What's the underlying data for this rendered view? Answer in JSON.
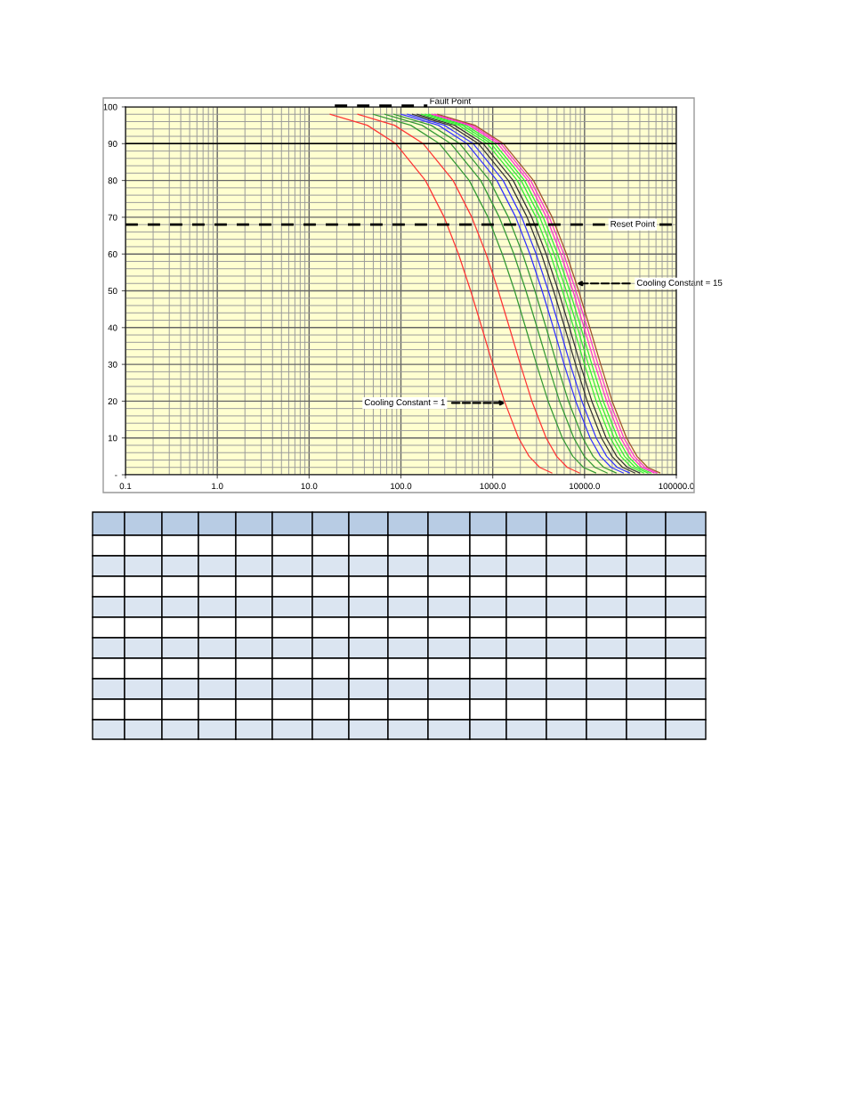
{
  "chart_data": {
    "type": "line",
    "log": "x",
    "grid": true,
    "line_style": "solid",
    "xlim": [
      0.1,
      100000
    ],
    "ylim": [
      0,
      100
    ],
    "xticks": [
      {
        "value": 0.1,
        "label": "0.1"
      },
      {
        "value": 1,
        "label": "1.0"
      },
      {
        "value": 10,
        "label": "10.0"
      },
      {
        "value": 100,
        "label": "100.0"
      },
      {
        "value": 1000,
        "label": "1000.0"
      },
      {
        "value": 10000,
        "label": "10000.0"
      },
      {
        "value": 100000,
        "label": "100000.0"
      }
    ],
    "yticks": [
      {
        "value": 0,
        "label": "-"
      },
      10,
      20,
      30,
      40,
      50,
      60,
      70,
      80,
      90,
      100
    ],
    "ref_lines": [
      {
        "axis": "y",
        "value": 68,
        "label": "Reset Point",
        "color": "#000000",
        "line_style": "dashed"
      },
      {
        "axis": "y",
        "value": 90,
        "label": null,
        "color": "#000000",
        "line_style": "solid"
      }
    ],
    "annotations": [
      "Fault Point",
      {
        "text": "Cooling Constant = 15",
        "x": 8200,
        "y": 52
      },
      {
        "text": "Cooling Constant = 1",
        "x": 1370,
        "y": 19.5
      }
    ],
    "series": [
      {
        "color": "#ff3333",
        "x": [
          17,
          43,
          88,
          185,
          296,
          424,
          575,
          761,
          999,
          1340,
          1910,
          2490,
          3250,
          4400
        ],
        "values": [
          98,
          95,
          90,
          80,
          70,
          60,
          50,
          40,
          30,
          20,
          10,
          5,
          2,
          0.5
        ]
      },
      {
        "color": "#ff3333",
        "x": [
          34,
          85,
          175,
          370,
          592,
          848,
          1150,
          1520,
          2000,
          2670,
          3820,
          4970,
          6490,
          8790
        ],
        "values": [
          98,
          95,
          90,
          80,
          70,
          60,
          50,
          40,
          30,
          20,
          10,
          5,
          2,
          0.5
        ]
      },
      {
        "color": "#339933",
        "x": [
          50,
          128,
          263,
          555,
          888,
          1270,
          1730,
          2280,
          3000,
          4010,
          5730,
          7460,
          9740,
          13200
        ],
        "values": [
          98,
          95,
          90,
          80,
          70,
          60,
          50,
          40,
          30,
          20,
          10,
          5,
          2,
          0.5
        ]
      },
      {
        "color": "#339933",
        "x": [
          67,
          170,
          350,
          740,
          1180,
          1700,
          2300,
          3040,
          4000,
          5340,
          7640,
          9940,
          13000,
          17600
        ],
        "values": [
          98,
          95,
          90,
          80,
          70,
          60,
          50,
          40,
          30,
          20,
          10,
          5,
          2,
          0.5
        ]
      },
      {
        "color": "#339933",
        "x": [
          84,
          213,
          438,
          925,
          1480,
          2120,
          2880,
          3810,
          5000,
          6680,
          9560,
          12400,
          16200,
          22000
        ],
        "values": [
          98,
          95,
          90,
          80,
          70,
          60,
          50,
          40,
          30,
          20,
          10,
          5,
          2,
          0.5
        ]
      },
      {
        "color": "#3333ff",
        "x": [
          101,
          256,
          525,
          1110,
          1780,
          2540,
          3450,
          4570,
          5990,
          8020,
          11500,
          14900,
          19500,
          26400
        ],
        "values": [
          98,
          95,
          90,
          80,
          70,
          60,
          50,
          40,
          30,
          20,
          10,
          5,
          2,
          0.5
        ]
      },
      {
        "color": "#3333ff",
        "x": [
          118,
          298,
          613,
          1300,
          2070,
          2970,
          4030,
          5330,
          6990,
          9350,
          13400,
          17400,
          22700,
          30800
        ],
        "values": [
          98,
          95,
          90,
          80,
          70,
          60,
          50,
          40,
          30,
          20,
          10,
          5,
          2,
          0.5
        ]
      },
      {
        "color": "#333333",
        "x": [
          134,
          341,
          700,
          1480,
          2370,
          3390,
          4600,
          6090,
          7990,
          10700,
          15300,
          19900,
          26000,
          35200
        ],
        "values": [
          98,
          95,
          90,
          80,
          70,
          60,
          50,
          40,
          30,
          20,
          10,
          5,
          2,
          0.5
        ]
      },
      {
        "color": "#333333",
        "x": [
          151,
          383,
          788,
          1670,
          2660,
          3820,
          5180,
          6850,
          8990,
          12000,
          17200,
          22400,
          29200,
          39600
        ],
        "values": [
          98,
          95,
          90,
          80,
          70,
          60,
          50,
          40,
          30,
          20,
          10,
          5,
          2,
          0.5
        ]
      },
      {
        "color": "#33ee33",
        "x": [
          168,
          426,
          875,
          1850,
          2960,
          4240,
          5750,
          7610,
          9990,
          13400,
          19100,
          24900,
          32500,
          44000
        ],
        "values": [
          98,
          95,
          90,
          80,
          70,
          60,
          50,
          40,
          30,
          20,
          10,
          5,
          2,
          0.5
        ]
      },
      {
        "color": "#33ee33",
        "x": [
          185,
          469,
          963,
          2040,
          3260,
          4660,
          6330,
          8370,
          11000,
          14700,
          21000,
          27300,
          35700,
          48400
        ],
        "values": [
          98,
          95,
          90,
          80,
          70,
          60,
          50,
          40,
          30,
          20,
          10,
          5,
          2,
          0.5
        ]
      },
      {
        "color": "#33ee33",
        "x": [
          202,
          511,
          1050,
          2220,
          3550,
          5090,
          6900,
          9130,
          12000,
          16000,
          22900,
          29800,
          39000,
          52800
        ],
        "values": [
          98,
          95,
          90,
          80,
          70,
          60,
          50,
          40,
          30,
          20,
          10,
          5,
          2,
          0.5
        ]
      },
      {
        "color": "#ff33cc",
        "x": [
          218,
          554,
          1140,
          2410,
          3850,
          5510,
          7480,
          9890,
          13000,
          17400,
          24800,
          32300,
          42200,
          57200
        ],
        "values": [
          98,
          95,
          90,
          80,
          70,
          60,
          50,
          40,
          30,
          20,
          10,
          5,
          2,
          0.5
        ]
      },
      {
        "color": "#ff33cc",
        "x": [
          235,
          596,
          1230,
          2590,
          4140,
          5940,
          8050,
          10700,
          14000,
          18700,
          26800,
          34800,
          45500,
          61600
        ],
        "values": [
          98,
          95,
          90,
          80,
          70,
          60,
          50,
          40,
          30,
          20,
          10,
          5,
          2,
          0.5
        ]
      },
      {
        "color": "#a0522d",
        "x": [
          252,
          639,
          1310,
          2780,
          4440,
          6360,
          8630,
          11400,
          15000,
          20000,
          28700,
          37300,
          48700,
          66000
        ],
        "values": [
          98,
          95,
          90,
          80,
          70,
          60,
          50,
          40,
          30,
          20,
          10,
          5,
          2,
          0.5
        ]
      }
    ]
  }
}
